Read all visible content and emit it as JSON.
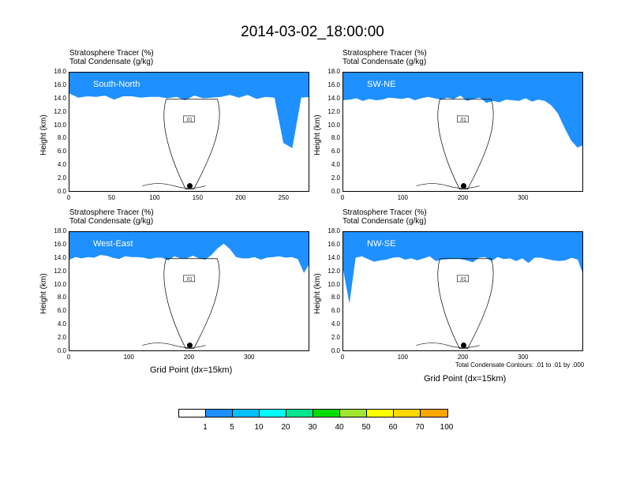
{
  "main_title": "2014-03-02_18:00:00",
  "chart_data": {
    "type": "heatmap",
    "field": "Stratosphere Tracer (%) with Total Condensate (g/kg) contours",
    "contour_info": "Total Condensate Contours: .01 to .01 by .000",
    "contour_label": ".01",
    "xlabel": "Grid Point (dx=15km)",
    "ylabel": "Height (km)",
    "ylim": [
      0,
      18
    ],
    "yticks": [
      "0.0",
      "2.0",
      "4.0",
      "6.0",
      "8.0",
      "10.0",
      "12.0",
      "14.0",
      "16.0",
      "18.0"
    ],
    "colorbar": {
      "levels": [
        "1",
        "5",
        "10",
        "20",
        "30",
        "40",
        "50",
        "60",
        "70",
        "100"
      ],
      "colors": [
        "#ffffff",
        "#1e90ff",
        "#00bfff",
        "#00ffff",
        "#00e690",
        "#00dd00",
        "#a0e632",
        "#ffff00",
        "#ffd700",
        "#ffa500",
        "#ff6a00",
        "#ff0000"
      ]
    },
    "panels": [
      {
        "id": "south-north",
        "line1": "Stratosphere Tracer   (%)",
        "line2": "Total Condensate   (g/kg)",
        "region": "South-North",
        "xmax": 280,
        "xticks": [
          "0",
          "50",
          "100",
          "150",
          "200",
          "250"
        ],
        "tropopause_km": [
          15.6,
          15.0,
          15.2,
          15.1,
          15.3,
          14.7,
          15.2,
          15.2,
          15.0,
          15.1,
          15.1,
          14.9,
          15.1,
          14.6,
          15.3,
          14.9,
          15.0,
          15.1,
          15.4,
          15.0,
          15.4,
          14.8,
          15.1,
          15.0,
          8.2,
          7.4,
          15.0,
          15.1
        ],
        "marker_x": 140
      },
      {
        "id": "sw-ne",
        "line1": "Stratosphere Tracer   (%)",
        "line2": "Total Condensate   (g/kg)",
        "region": "SW-NE",
        "xmax": 400,
        "xticks": [
          "0",
          "100",
          "200",
          "300"
        ],
        "tropopause_km": [
          14.6,
          14.7,
          14.9,
          14.5,
          14.8,
          14.6,
          14.7,
          15.0,
          14.9,
          14.8,
          15.0,
          14.6,
          14.9,
          15.1,
          14.9,
          14.7,
          15.0,
          14.8,
          15.3,
          14.5,
          14.8,
          15.0,
          14.2,
          14.5,
          14.3,
          14.7,
          14.6,
          14.5,
          14.9,
          14.4,
          14.7,
          14.5,
          13.8,
          12.6,
          10.5,
          8.6,
          7.5,
          7.9
        ],
        "marker_x": 200
      },
      {
        "id": "west-east",
        "line1": "Stratosphere Tracer   (%)",
        "line2": "Total Condensate   (g/kg)",
        "region": "West-East",
        "xmax": 400,
        "xticks": [
          "0",
          "100",
          "200",
          "300"
        ],
        "tropopause_km": [
          14.6,
          15.0,
          14.8,
          15.0,
          14.9,
          15.3,
          15.2,
          14.9,
          14.7,
          15.1,
          15.0,
          15.0,
          14.9,
          14.7,
          14.9,
          14.9,
          14.5,
          15.1,
          14.8,
          14.8,
          15.2,
          14.8,
          14.6,
          15.3,
          16.3,
          17.0,
          16.2,
          15.0,
          14.8,
          14.8,
          15.0,
          14.6,
          14.9,
          15.0,
          15.1,
          14.9,
          15.0,
          14.7,
          12.6,
          14.2
        ],
        "marker_x": 200
      },
      {
        "id": "nw-se",
        "line1": "Stratosphere Tracer   (%)",
        "line2": "Total Condensate   (g/kg)",
        "region": "NW-SE",
        "xmax": 400,
        "xticks": [
          "0",
          "100",
          "200",
          "300"
        ],
        "tropopause_km": [
          13.0,
          8.0,
          14.9,
          15.1,
          14.7,
          14.3,
          14.5,
          14.6,
          14.9,
          15.0,
          14.6,
          14.8,
          14.5,
          14.8,
          15.1,
          14.4,
          14.6,
          14.7,
          14.8,
          14.7,
          14.5,
          14.2,
          14.9,
          15.0,
          14.4,
          15.0,
          14.7,
          14.8,
          14.4,
          14.8,
          14.1,
          14.9,
          14.9,
          14.7,
          14.5,
          14.4,
          14.5,
          14.9,
          14.6,
          12.0
        ],
        "marker_x": 200
      }
    ]
  }
}
